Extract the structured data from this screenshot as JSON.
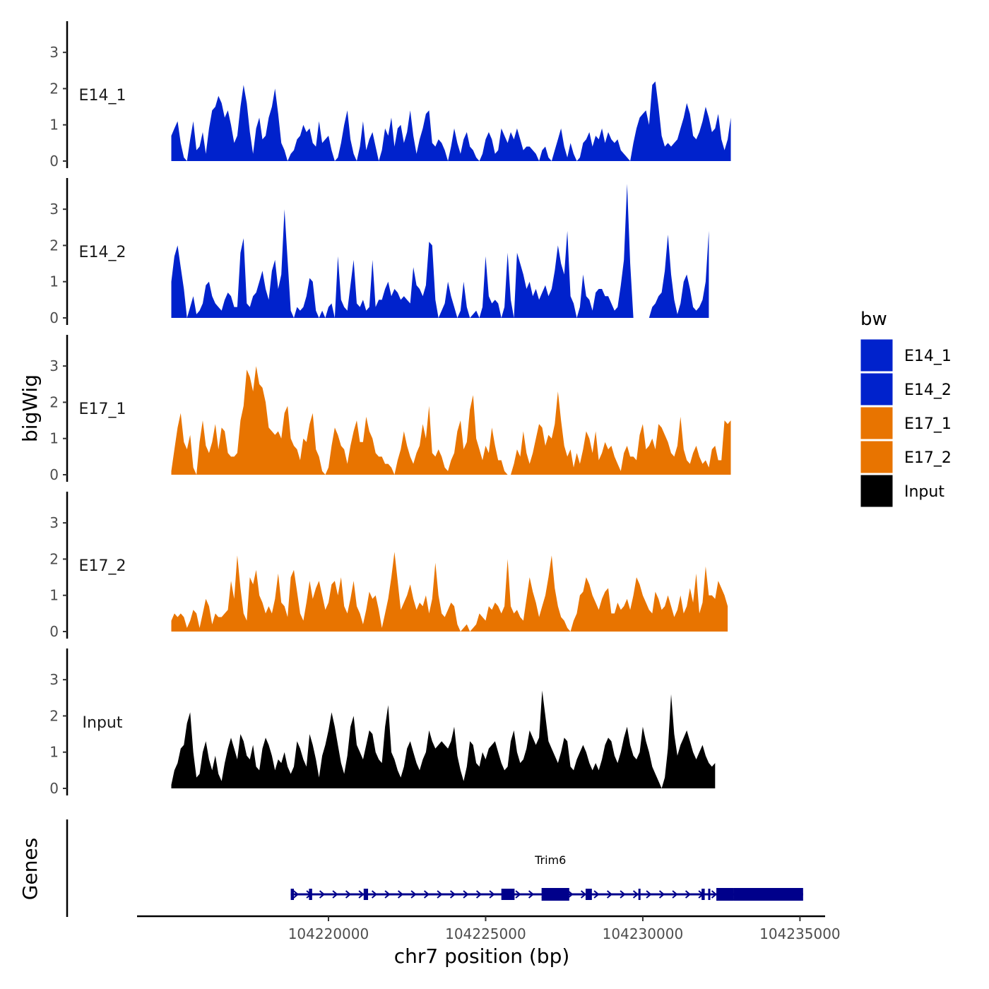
{
  "chart_data": {
    "type": "area",
    "title": "",
    "y_title": "bigWig",
    "genes_title": "Genes",
    "x_title": "chr7 position (bp)",
    "x_range": [
      104214000,
      104235800
    ],
    "x_ticks": [
      104220000,
      104225000,
      104230000,
      104235000
    ],
    "x_tick_labels": [
      "104220000",
      "104225000",
      "104230000",
      "104235000"
    ],
    "y_range": [
      0,
      3.9
    ],
    "y_ticks": [
      0,
      1,
      2,
      3
    ],
    "y_tick_labels": [
      "0",
      "1",
      "2",
      "3"
    ],
    "legend": {
      "title": "bw",
      "position": "right",
      "entries": [
        {
          "label": "E14_1",
          "color": "#0022CC"
        },
        {
          "label": "E14_2",
          "color": "#0022CC"
        },
        {
          "label": "E17_1",
          "color": "#E87400"
        },
        {
          "label": "E17_2",
          "color": "#E87400"
        },
        {
          "label": "Input",
          "color": "#000000"
        }
      ]
    },
    "track_start": 104215000,
    "track_step": 100,
    "series": [
      {
        "name": "E14_1",
        "color": "#0022CC",
        "values": [
          0.7,
          0.9,
          1.1,
          0.5,
          0.1,
          0.0,
          0.6,
          1.1,
          0.3,
          0.4,
          0.8,
          0.2,
          0.9,
          1.4,
          1.5,
          1.8,
          1.6,
          1.2,
          1.4,
          1.0,
          0.5,
          0.7,
          1.5,
          2.1,
          1.6,
          0.8,
          0.2,
          0.9,
          1.2,
          0.6,
          0.7,
          1.2,
          1.5,
          2.0,
          1.3,
          0.5,
          0.3,
          0.0,
          0.2,
          0.3,
          0.6,
          0.7,
          1.0,
          0.8,
          0.9,
          0.5,
          0.4,
          1.1,
          0.5,
          0.6,
          0.7,
          0.3,
          0.0,
          0.1,
          0.5,
          1.0,
          1.4,
          0.6,
          0.2,
          0.0,
          0.4,
          1.1,
          0.3,
          0.6,
          0.8,
          0.4,
          0.0,
          0.3,
          0.9,
          0.7,
          1.2,
          0.4,
          0.9,
          1.0,
          0.5,
          0.8,
          1.4,
          0.7,
          0.2,
          0.6,
          0.9,
          1.3,
          1.4,
          0.5,
          0.4,
          0.6,
          0.5,
          0.3,
          0.0,
          0.4,
          0.9,
          0.5,
          0.2,
          0.6,
          0.8,
          0.4,
          0.3,
          0.1,
          0.0,
          0.2,
          0.6,
          0.8,
          0.6,
          0.2,
          0.3,
          0.9,
          0.7,
          0.5,
          0.8,
          0.6,
          0.9,
          0.6,
          0.3,
          0.4,
          0.4,
          0.3,
          0.2,
          0.0,
          0.3,
          0.4,
          0.1,
          0.0,
          0.3,
          0.6,
          0.9,
          0.4,
          0.1,
          0.5,
          0.2,
          0.0,
          0.1,
          0.5,
          0.6,
          0.8,
          0.4,
          0.7,
          0.6,
          0.9,
          0.5,
          0.8,
          0.6,
          0.5,
          0.6,
          0.3,
          0.2,
          0.1,
          0.0,
          0.5,
          0.9,
          1.2,
          1.3,
          1.4,
          1.0,
          2.1,
          2.2,
          1.5,
          0.7,
          0.4,
          0.5,
          0.4,
          0.5,
          0.6,
          0.9,
          1.2,
          1.6,
          1.3,
          0.7,
          0.6,
          0.8,
          1.1,
          1.5,
          1.2,
          0.8,
          0.9,
          1.3,
          0.6,
          0.3,
          0.6,
          1.2
        ]
      },
      {
        "name": "E14_2",
        "color": "#0022CC",
        "values": [
          1.0,
          1.7,
          2.0,
          1.4,
          0.8,
          0.0,
          0.3,
          0.6,
          0.1,
          0.2,
          0.4,
          0.9,
          1.0,
          0.6,
          0.4,
          0.3,
          0.2,
          0.5,
          0.7,
          0.6,
          0.3,
          0.3,
          1.8,
          2.2,
          0.4,
          0.3,
          0.6,
          0.7,
          1.0,
          1.3,
          0.8,
          0.5,
          1.3,
          1.6,
          0.8,
          1.2,
          3.0,
          1.6,
          0.2,
          0.0,
          0.3,
          0.2,
          0.3,
          0.6,
          1.1,
          1.0,
          0.2,
          0.0,
          0.2,
          0.0,
          0.3,
          0.4,
          0.0,
          1.7,
          0.5,
          0.3,
          0.2,
          0.9,
          1.6,
          0.4,
          0.3,
          0.5,
          0.2,
          0.3,
          1.6,
          0.3,
          0.5,
          0.5,
          0.8,
          1.0,
          0.6,
          0.8,
          0.7,
          0.5,
          0.6,
          0.5,
          0.4,
          1.4,
          0.9,
          0.8,
          0.6,
          0.9,
          2.1,
          2.0,
          0.5,
          0.0,
          0.2,
          0.4,
          1.0,
          0.6,
          0.3,
          0.0,
          0.2,
          1.0,
          0.3,
          0.0,
          0.1,
          0.2,
          0.0,
          0.3,
          1.7,
          0.6,
          0.4,
          0.5,
          0.4,
          0.0,
          0.3,
          1.8,
          0.5,
          0.0,
          1.8,
          1.5,
          1.2,
          0.8,
          1.0,
          0.6,
          0.8,
          0.5,
          0.7,
          0.9,
          0.6,
          0.8,
          1.3,
          2.0,
          1.5,
          1.2,
          2.4,
          0.6,
          0.4,
          0.0,
          0.3,
          1.2,
          0.6,
          0.5,
          0.2,
          0.7,
          0.8,
          0.8,
          0.6,
          0.6,
          0.4,
          0.2,
          0.3,
          0.9,
          1.6,
          3.7,
          1.5,
          0.0,
          0.0,
          0.0,
          0.0,
          0.0,
          0.0,
          0.3,
          0.4,
          0.6,
          0.7,
          1.3,
          2.3,
          1.2,
          0.5,
          0.1,
          0.4,
          1.0,
          1.2,
          0.8,
          0.3,
          0.2,
          0.3,
          0.5,
          1.0,
          2.4
        ]
      },
      {
        "name": "E17_1",
        "color": "#E87400",
        "values": [
          0.1,
          0.7,
          1.3,
          1.7,
          0.9,
          0.7,
          1.1,
          0.2,
          0.0,
          0.9,
          1.5,
          0.8,
          0.6,
          0.9,
          1.4,
          0.7,
          1.3,
          1.2,
          0.6,
          0.5,
          0.5,
          0.6,
          1.5,
          1.9,
          2.9,
          2.7,
          2.3,
          3.0,
          2.5,
          2.4,
          2.0,
          1.3,
          1.2,
          1.1,
          1.2,
          1.0,
          1.7,
          1.9,
          1.0,
          0.8,
          0.7,
          0.4,
          1.0,
          0.9,
          1.4,
          1.7,
          0.7,
          0.5,
          0.1,
          0.0,
          0.2,
          0.8,
          1.3,
          1.1,
          0.8,
          0.7,
          0.3,
          0.8,
          1.2,
          1.5,
          0.9,
          0.9,
          1.6,
          1.2,
          1.0,
          0.6,
          0.5,
          0.5,
          0.3,
          0.3,
          0.2,
          0.0,
          0.4,
          0.7,
          1.2,
          0.8,
          0.5,
          0.3,
          0.6,
          0.8,
          1.4,
          1.0,
          1.9,
          0.6,
          0.5,
          0.7,
          0.5,
          0.2,
          0.1,
          0.4,
          0.6,
          1.2,
          1.5,
          0.7,
          0.9,
          1.8,
          2.2,
          1.0,
          0.7,
          0.4,
          0.8,
          0.6,
          1.3,
          0.8,
          0.4,
          0.4,
          0.1,
          0.0,
          0.0,
          0.3,
          0.7,
          0.5,
          1.2,
          0.6,
          0.3,
          0.6,
          1.0,
          1.4,
          1.3,
          0.8,
          1.1,
          1.0,
          1.4,
          2.3,
          1.5,
          0.8,
          0.5,
          0.7,
          0.2,
          0.6,
          0.3,
          0.7,
          1.2,
          1.0,
          0.6,
          1.2,
          0.4,
          0.6,
          0.9,
          0.7,
          0.8,
          0.5,
          0.3,
          0.1,
          0.6,
          0.8,
          0.5,
          0.5,
          0.4,
          1.1,
          1.4,
          0.7,
          0.8,
          1.0,
          0.7,
          1.4,
          1.3,
          1.1,
          0.9,
          0.6,
          0.5,
          0.8,
          1.6,
          0.7,
          0.4,
          0.3,
          0.6,
          0.8,
          0.5,
          0.3,
          0.4,
          0.2,
          0.7,
          0.8,
          0.4,
          0.4,
          1.5,
          1.4,
          1.5
        ]
      },
      {
        "name": "E17_2",
        "color": "#E87400",
        "values": [
          0.3,
          0.5,
          0.4,
          0.5,
          0.4,
          0.1,
          0.3,
          0.6,
          0.5,
          0.1,
          0.5,
          0.9,
          0.7,
          0.2,
          0.5,
          0.4,
          0.4,
          0.5,
          0.6,
          1.4,
          0.9,
          2.1,
          1.2,
          0.5,
          0.3,
          1.5,
          1.3,
          1.7,
          1.0,
          0.8,
          0.5,
          0.7,
          0.5,
          0.9,
          1.6,
          0.8,
          0.7,
          0.4,
          1.5,
          1.7,
          1.1,
          0.5,
          0.3,
          0.8,
          1.4,
          0.9,
          1.2,
          1.4,
          1.0,
          0.6,
          0.8,
          1.3,
          1.4,
          1.0,
          1.5,
          0.7,
          0.5,
          0.9,
          1.4,
          0.7,
          0.5,
          0.2,
          0.6,
          1.1,
          0.9,
          1.0,
          0.6,
          0.1,
          0.5,
          0.9,
          1.5,
          2.2,
          1.4,
          0.6,
          0.8,
          1.0,
          1.3,
          0.9,
          0.6,
          0.8,
          0.7,
          1.0,
          0.5,
          0.9,
          1.9,
          1.0,
          0.5,
          0.4,
          0.6,
          0.8,
          0.7,
          0.2,
          0.0,
          0.1,
          0.2,
          0.0,
          0.1,
          0.2,
          0.5,
          0.4,
          0.3,
          0.7,
          0.6,
          0.8,
          0.7,
          0.5,
          0.7,
          2.0,
          0.7,
          0.5,
          0.6,
          0.4,
          0.3,
          0.9,
          1.5,
          1.1,
          0.8,
          0.4,
          0.7,
          1.0,
          1.5,
          2.1,
          1.2,
          0.7,
          0.4,
          0.3,
          0.1,
          0.0,
          0.3,
          0.5,
          1.0,
          1.1,
          1.5,
          1.3,
          1.0,
          0.8,
          0.6,
          0.9,
          1.1,
          1.2,
          0.5,
          0.5,
          0.8,
          0.6,
          0.7,
          0.9,
          0.6,
          1.0,
          1.5,
          1.3,
          1.0,
          0.8,
          0.6,
          0.5,
          1.1,
          0.9,
          0.6,
          0.7,
          1.0,
          0.7,
          0.4,
          0.6,
          1.0,
          0.5,
          0.7,
          1.2,
          0.8,
          1.6,
          0.5,
          0.8,
          1.8,
          1.0,
          1.0,
          0.9,
          1.4,
          1.2,
          1.0,
          0.7
        ]
      },
      {
        "name": "Input",
        "color": "#000000",
        "values": [
          0.1,
          0.5,
          0.7,
          1.1,
          1.2,
          1.8,
          2.1,
          1.0,
          0.3,
          0.4,
          1.0,
          1.3,
          0.8,
          0.5,
          0.9,
          0.4,
          0.2,
          0.7,
          1.1,
          1.4,
          1.1,
          0.8,
          1.5,
          1.3,
          0.9,
          0.8,
          1.2,
          0.6,
          0.5,
          1.1,
          1.4,
          1.2,
          0.9,
          0.5,
          0.8,
          0.7,
          1.0,
          0.6,
          0.4,
          0.6,
          1.3,
          1.1,
          0.8,
          0.6,
          1.5,
          1.2,
          0.8,
          0.3,
          0.9,
          1.2,
          1.6,
          2.1,
          1.7,
          1.2,
          0.7,
          0.4,
          0.9,
          1.7,
          2.0,
          1.2,
          1.0,
          0.8,
          1.2,
          1.6,
          1.5,
          1.0,
          0.8,
          0.7,
          1.7,
          2.3,
          1.0,
          0.8,
          0.5,
          0.3,
          0.6,
          1.1,
          1.3,
          1.0,
          0.7,
          0.5,
          0.8,
          1.0,
          1.6,
          1.3,
          1.1,
          1.2,
          1.3,
          1.2,
          1.1,
          1.3,
          1.7,
          0.9,
          0.5,
          0.2,
          0.6,
          1.3,
          1.2,
          0.7,
          0.6,
          1.0,
          0.8,
          1.1,
          1.2,
          1.3,
          1.0,
          0.7,
          0.5,
          0.6,
          1.3,
          1.6,
          1.0,
          0.7,
          0.8,
          1.1,
          1.6,
          1.4,
          1.2,
          1.4,
          2.7,
          2.0,
          1.3,
          1.1,
          0.9,
          0.7,
          1.0,
          1.4,
          1.3,
          0.6,
          0.5,
          0.8,
          1.0,
          1.2,
          1.0,
          0.7,
          0.5,
          0.7,
          0.5,
          0.8,
          1.2,
          1.4,
          1.3,
          0.9,
          0.7,
          1.0,
          1.4,
          1.7,
          1.2,
          0.9,
          0.8,
          1.0,
          1.7,
          1.3,
          1.0,
          0.6,
          0.4,
          0.2,
          0.0,
          0.3,
          1.1,
          2.6,
          1.5,
          0.9,
          1.2,
          1.4,
          1.6,
          1.3,
          1.0,
          0.8,
          1.0,
          1.2,
          0.9,
          0.7,
          0.6,
          0.7
        ]
      }
    ],
    "genes": [
      {
        "name": "Trim6",
        "color": "#00008B",
        "start": 104218800,
        "end": 104235100,
        "strand": "+",
        "exons": [
          [
            104218800,
            104218900
          ],
          [
            104219380,
            104219480
          ],
          [
            104221120,
            104221260
          ],
          [
            104225500,
            104225920
          ],
          [
            104226780,
            104227660
          ],
          [
            104228180,
            104228380
          ],
          [
            104229860,
            104229880
          ],
          [
            104231870,
            104231970
          ],
          [
            104232080,
            104232110
          ],
          [
            104232340,
            104232900
          ],
          [
            104232900,
            104235100
          ]
        ]
      }
    ]
  }
}
